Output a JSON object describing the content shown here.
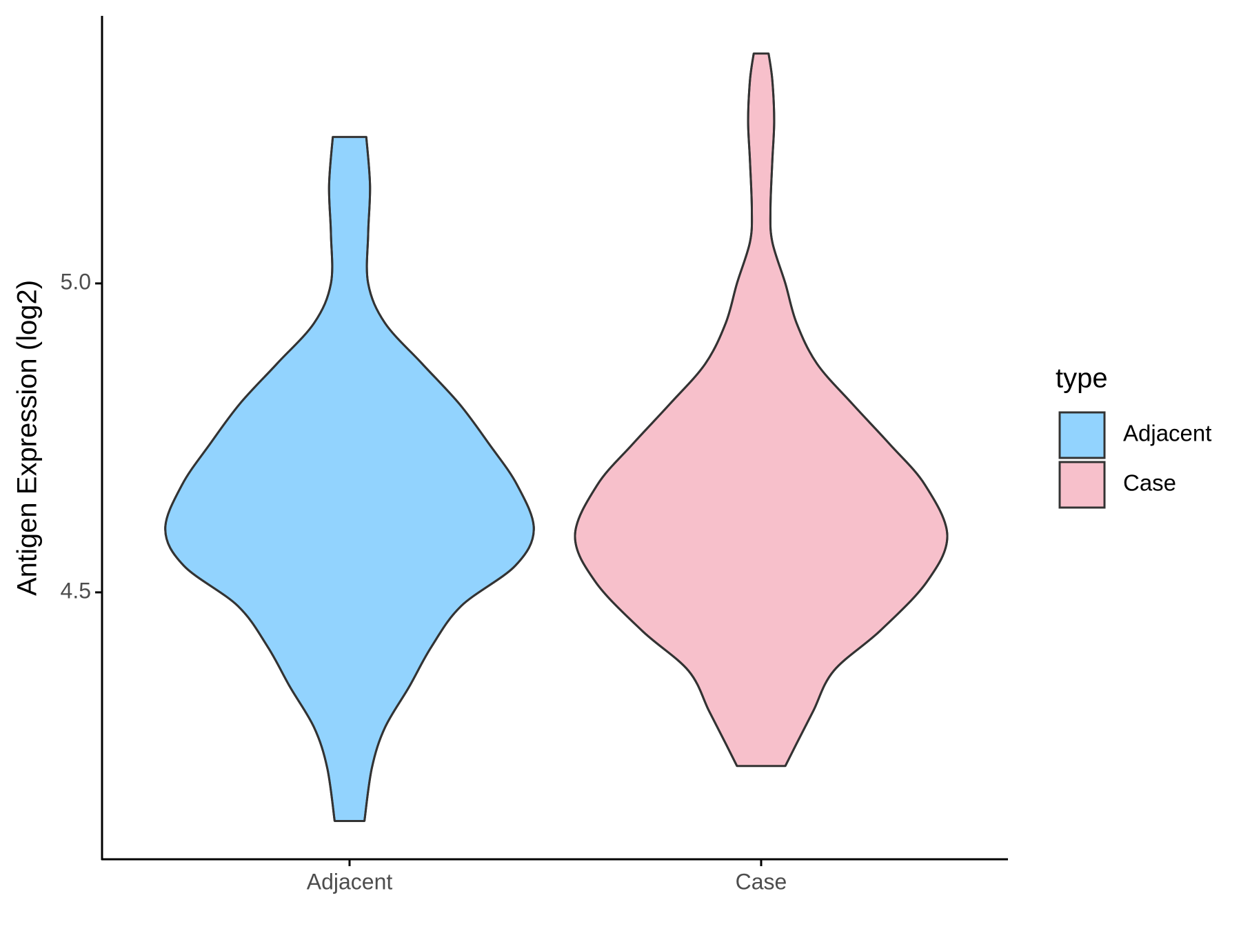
{
  "chart_data": {
    "type": "violin",
    "y_label": "Antigen Expression (log2)",
    "categories": [
      "Adjacent",
      "Case"
    ],
    "series": [
      {
        "name": "Adjacent",
        "color": "#92d3fe",
        "y": [
          5.237,
          5.158,
          5.08,
          5.0,
          4.936,
          4.87,
          4.805,
          4.74,
          4.674,
          4.602,
          4.543,
          4.478,
          4.412,
          4.347,
          4.281,
          4.216,
          4.13
        ],
        "density": [
          0.09,
          0.11,
          0.1,
          0.1,
          0.19,
          0.39,
          0.59,
          0.75,
          0.9,
          0.99,
          0.89,
          0.6,
          0.44,
          0.32,
          0.19,
          0.12,
          0.08
        ]
      },
      {
        "name": "Case",
        "color": "#f7c0cb",
        "y": [
          5.372,
          5.329,
          5.263,
          5.198,
          5.119,
          5.067,
          5.0,
          4.936,
          4.87,
          4.805,
          4.74,
          4.674,
          4.592,
          4.517,
          4.438,
          4.373,
          4.308,
          4.255,
          4.219
        ],
        "density": [
          0.04,
          0.06,
          0.07,
          0.06,
          0.05,
          0.06,
          0.13,
          0.19,
          0.3,
          0.49,
          0.69,
          0.88,
          1.0,
          0.89,
          0.64,
          0.39,
          0.28,
          0.19,
          0.13
        ]
      }
    ],
    "ylim": [
      4.068,
      5.433
    ],
    "yticks": [
      4.5,
      {
        "value": 5,
        "label": "5.0"
      }
    ],
    "legend_title": "type",
    "legend_position": "right"
  }
}
